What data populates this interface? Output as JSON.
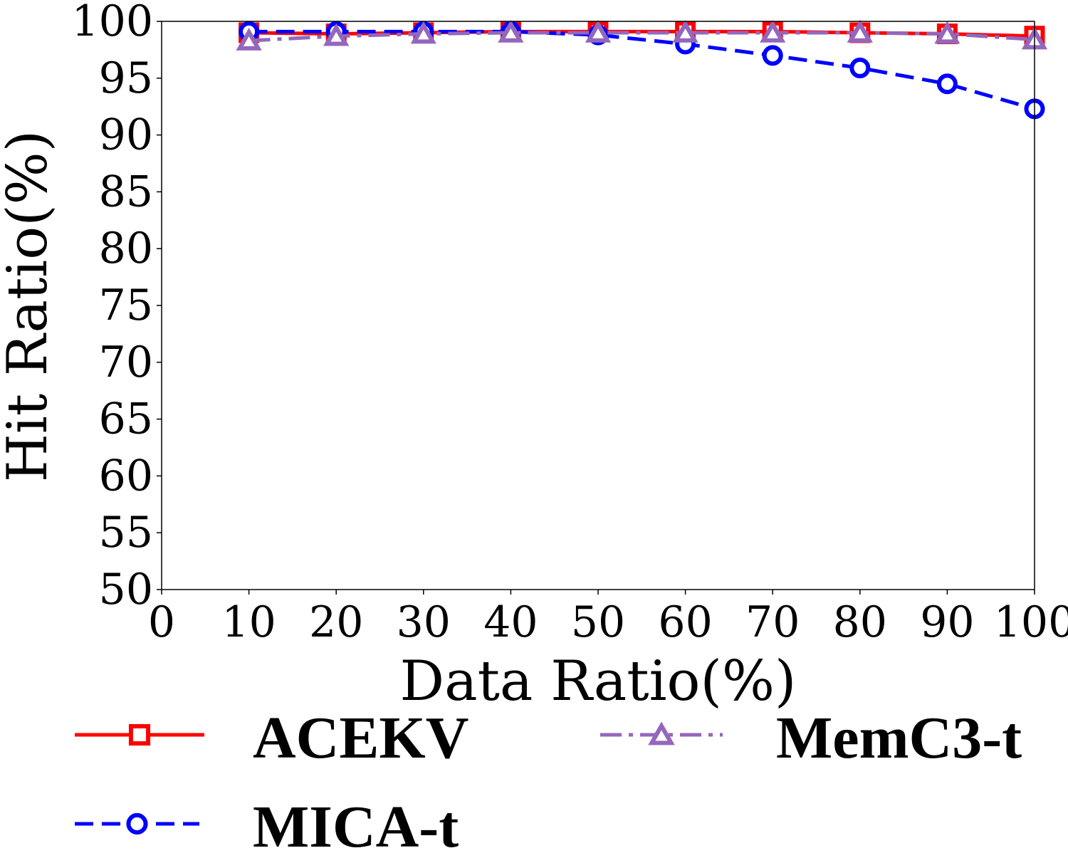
{
  "chart_data": {
    "type": "line",
    "xlabel": "Data Ratio(%)",
    "ylabel": "Hit Ratio(%)",
    "xlim": [
      0,
      100
    ],
    "ylim": [
      50,
      100
    ],
    "xticks": [
      0,
      10,
      20,
      30,
      40,
      50,
      60,
      70,
      80,
      90,
      100
    ],
    "yticks": [
      50,
      55,
      60,
      65,
      70,
      75,
      80,
      85,
      90,
      95,
      100
    ],
    "x": [
      10,
      20,
      30,
      40,
      50,
      60,
      70,
      80,
      90,
      100
    ],
    "grid": false,
    "legend_position": "bottom",
    "series": [
      {
        "name": "ACEKV",
        "color": "#ff0000",
        "line_style": "solid",
        "marker": "square",
        "values": [
          99.0,
          98.9,
          99.0,
          99.1,
          99.1,
          99.1,
          99.1,
          99.0,
          98.9,
          98.7
        ]
      },
      {
        "name": "MICA-t",
        "color": "#0000ff",
        "line_style": "dashed",
        "marker": "circle",
        "values": [
          99.1,
          99.1,
          99.1,
          99.1,
          98.8,
          98.0,
          97.0,
          95.9,
          94.5,
          92.3
        ]
      },
      {
        "name": "MemC3-t",
        "color": "#9467bd",
        "line_style": "dashdot",
        "marker": "triangle",
        "values": [
          98.3,
          98.7,
          98.9,
          99.0,
          99.0,
          99.0,
          99.0,
          99.0,
          98.9,
          98.4
        ]
      }
    ]
  }
}
